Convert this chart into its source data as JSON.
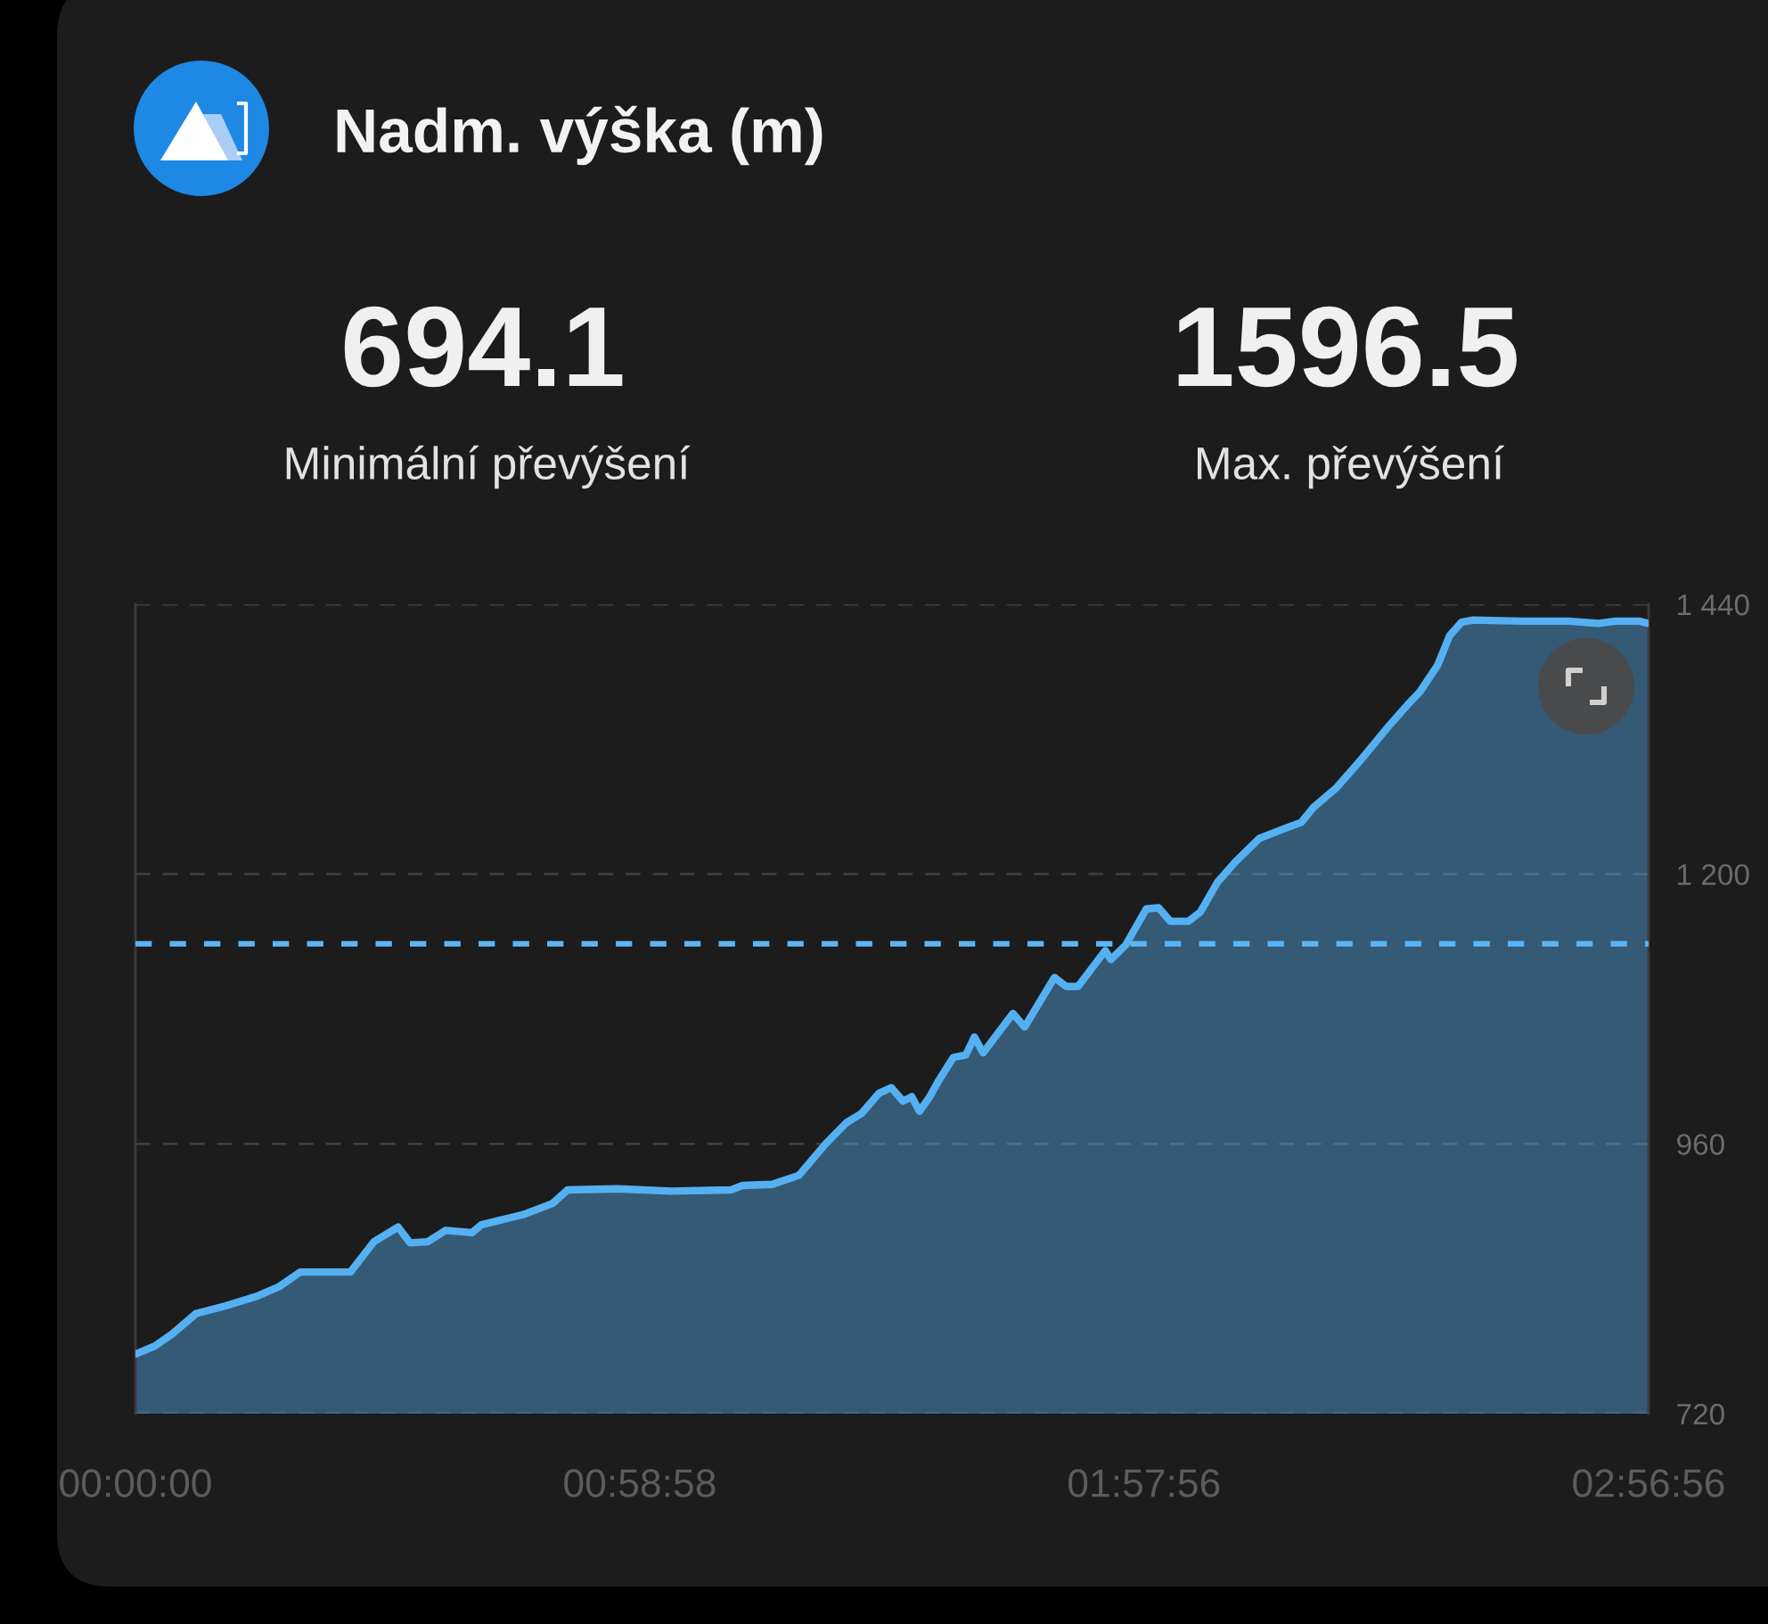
{
  "chart_data": {
    "type": "area",
    "title": "Nadm. výška (m)",
    "annotations": [
      "694.1",
      "Minimální převýšení",
      "1596.5",
      "Max. převýšení"
    ],
    "x": [
      0,
      0.037,
      0.072,
      0.118,
      0.176,
      0.234,
      0.28,
      0.321,
      0.419,
      0.465,
      0.512,
      0.535,
      0.57,
      0.604,
      0.656,
      0.674,
      0.755,
      0.813,
      0.842,
      0.94,
      1.044,
      1.16,
      1.183,
      1.241,
      1.293,
      1.345,
      1.386,
      1.415,
      1.449,
      1.473,
      1.496,
      1.513,
      1.528,
      1.548,
      1.565,
      1.594,
      1.618,
      1.635,
      1.652,
      1.71,
      1.733,
      1.791,
      1.814,
      1.837,
      1.89,
      1.901,
      1.93,
      1.97,
      1.994,
      2.017,
      2.052,
      2.075,
      2.109,
      2.144,
      2.191,
      2.237,
      2.272,
      2.295,
      2.341,
      2.387,
      2.445,
      2.48,
      2.503,
      2.538,
      2.561,
      2.584,
      2.607,
      2.7,
      2.793,
      2.851,
      2.885,
      2.932,
      2.948
    ],
    "series": [
      {
        "color": "#55b0f2",
        "values": [
          773,
          780,
          791,
          809,
          816,
          824,
          833,
          846,
          846,
          873,
          886,
          872,
          873,
          883,
          881,
          888,
          897,
          907,
          919,
          920,
          918,
          919,
          923,
          924,
          932,
          960,
          979,
          987,
          1005,
          1010,
          998,
          1002,
          989,
          1002,
          1016,
          1037,
          1039,
          1055,
          1041,
          1076,
          1064,
          1108,
          1100,
          1100,
          1132,
          1124,
          1137,
          1169,
          1170,
          1158,
          1158,
          1166,
          1193,
          1211,
          1232,
          1240,
          1246,
          1259,
          1277,
          1301,
          1333,
          1351,
          1362,
          1386,
          1412,
          1424,
          1426,
          1425,
          1425,
          1423,
          1425,
          1425,
          1423
        ]
      }
    ],
    "xlim": [
      0,
      2.948889
    ],
    "xticks": [
      {
        "value": 0,
        "label": "00:00:00"
      },
      {
        "value": 0.982778,
        "label": "00:58:58"
      },
      {
        "value": 1.965556,
        "label": "01:57:56"
      },
      {
        "value": 2.948889,
        "label": "02:56:56"
      }
    ],
    "ylim": [
      720,
      1440
    ],
    "yticks": [
      720,
      960,
      {
        "value": 1200,
        "label": "1 200"
      },
      {
        "value": 1440,
        "label": "1 440"
      }
    ],
    "grid": "y",
    "ref_lines": [
      {
        "axis": "y",
        "value": 1138,
        "color": "#5ab4f5",
        "line_style": "dashed"
      }
    ]
  }
}
